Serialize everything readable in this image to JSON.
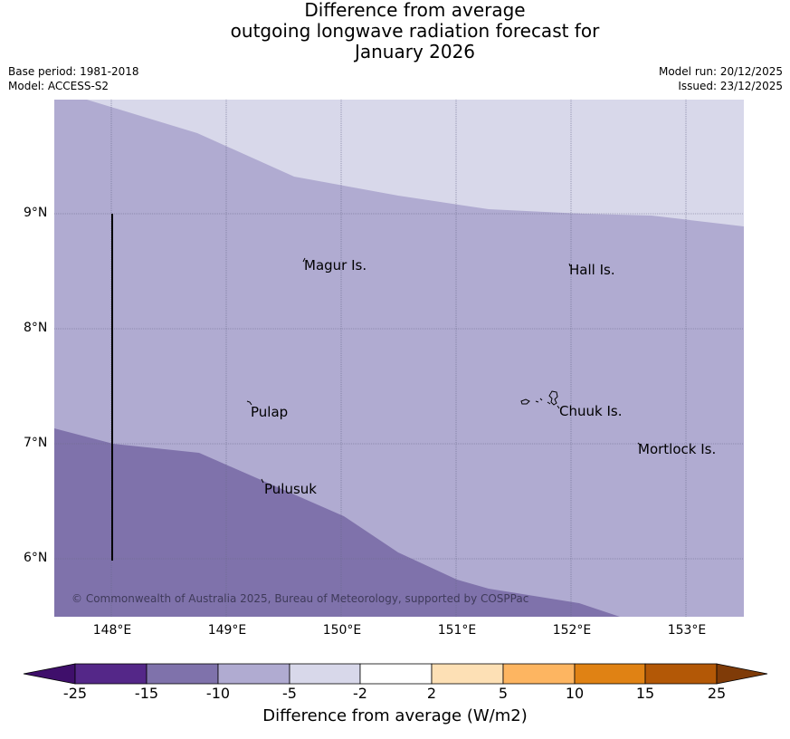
{
  "title": {
    "line1": "Difference from average",
    "line2": "outgoing longwave radiation forecast for",
    "line3": "January 2026"
  },
  "meta": {
    "base_period": "Base period: 1981-2018",
    "model": "Model: ACCESS-S2",
    "model_run": "Model run: 20/12/2025",
    "issued": "Issued: 23/12/2025"
  },
  "map": {
    "lat_ticks": [
      "9°N",
      "8°N",
      "7°N",
      "6°N"
    ],
    "lon_ticks": [
      "148°E",
      "149°E",
      "150°E",
      "151°E",
      "152°E",
      "153°E"
    ],
    "places": [
      "Magur Is.",
      "Hall Is.",
      "Pulap",
      "Chuuk Is.",
      "Mortlock Is.",
      "Pulusuk"
    ],
    "copyright": "© Commonwealth of Australia 2025, Bureau of Meteorology, supported by COSPPac",
    "colors": {
      "band_minus15_minus10": "#7f72ab",
      "band_minus10_minus5": "#b0abd1",
      "band_minus5_minus2": "#d8d8ea"
    }
  },
  "colorbar": {
    "ticks": [
      "-25",
      "-15",
      "-10",
      "-5",
      "-2",
      "2",
      "5",
      "10",
      "15",
      "25"
    ],
    "colors": [
      "#3f0f6b",
      "#542788",
      "#7f72ab",
      "#b0abd1",
      "#d8d8ea",
      "#ffffff",
      "#fde0b5",
      "#fdb561",
      "#e08214",
      "#b35806",
      "#7f3b08"
    ],
    "label": "Difference from average (W/m2)"
  },
  "chart_data": {
    "type": "heatmap",
    "title": "Difference from average outgoing longwave radiation forecast for January 2026",
    "units": "W/m2",
    "lon_range": [
      147.5,
      153.5
    ],
    "lat_range": [
      5.5,
      10.0
    ],
    "levels": [
      -25,
      -15,
      -10,
      -5,
      -2,
      2,
      5,
      10,
      15,
      25
    ],
    "regions": [
      {
        "range": "-5 to -2",
        "location": "north-east"
      },
      {
        "range": "-10 to -5",
        "location": "centre"
      },
      {
        "range": "-15 to -10",
        "location": "south-west"
      }
    ]
  }
}
